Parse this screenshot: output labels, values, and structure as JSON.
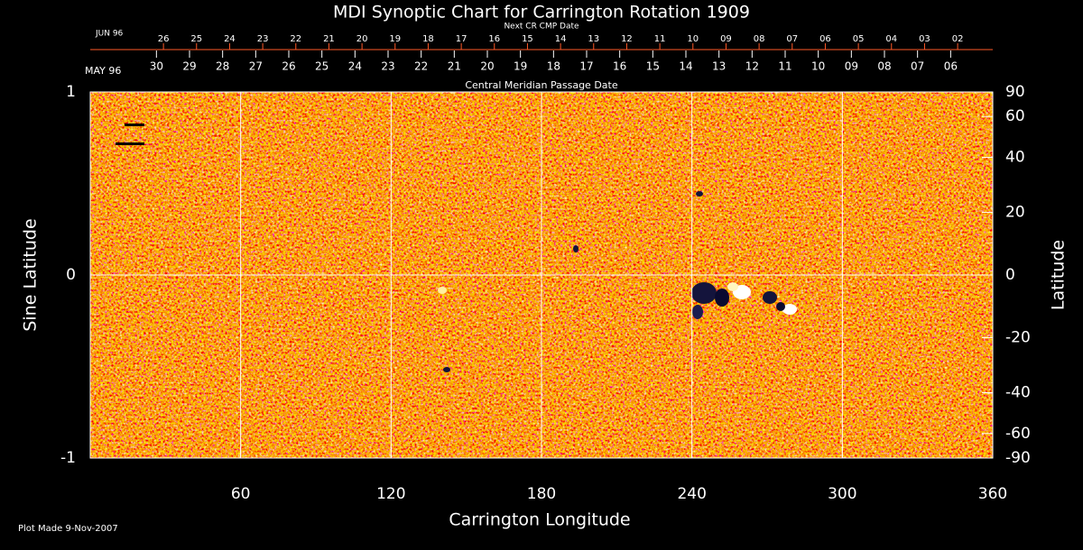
{
  "chart_data": {
    "type": "image",
    "title": "MDI Synoptic Chart for Carrington Rotation 1909",
    "xlabel": "Carrington Longitude",
    "ylabel": "Sine Latitude",
    "y2label": "Latitude",
    "xlim": [
      0,
      360
    ],
    "xticks": [
      60,
      120,
      180,
      240,
      300,
      360
    ],
    "ylim": [
      -1,
      1
    ],
    "yticks": [
      -1,
      0,
      1
    ],
    "y2lim": [
      -90,
      90
    ],
    "y2ticks": [
      90,
      60,
      40,
      20,
      0,
      -20,
      -40,
      -60,
      -90
    ],
    "y2scale": "sine",
    "top_axis": {
      "label": "Central Meridian Passage Date",
      "month": "MAY 96",
      "color": "#ffffff",
      "dates": [
        "30",
        "29",
        "28",
        "27",
        "26",
        "25",
        "24",
        "23",
        "22",
        "21",
        "20",
        "19",
        "18",
        "17",
        "16",
        "15",
        "14",
        "13",
        "12",
        "11",
        "10",
        "09",
        "08",
        "07",
        "06"
      ],
      "positions": [
        26.4,
        39.6,
        52.8,
        66.0,
        79.2,
        92.4,
        105.6,
        118.8,
        132.0,
        145.2,
        158.4,
        171.6,
        184.8,
        198.0,
        211.2,
        224.4,
        237.6,
        250.8,
        264.0,
        277.2,
        290.4,
        303.6,
        316.8,
        330.0,
        343.2
      ]
    },
    "next_axis": {
      "label": "Next CR CMP Date",
      "month": "JUN 96",
      "color": "#ff5a28",
      "dates": [
        "26",
        "25",
        "24",
        "23",
        "22",
        "21",
        "20",
        "19",
        "18",
        "17",
        "16",
        "15",
        "14",
        "13",
        "12",
        "11",
        "10",
        "09",
        "08",
        "07",
        "06",
        "05",
        "04",
        "03",
        "02"
      ],
      "positions": [
        29.2,
        42.4,
        55.6,
        68.8,
        82.0,
        95.2,
        108.4,
        121.6,
        134.8,
        148.0,
        161.2,
        174.4,
        187.6,
        200.8,
        214.0,
        227.2,
        240.4,
        253.6,
        266.8,
        280.0,
        293.2,
        306.4,
        319.6,
        332.8,
        346.0
      ]
    }
  },
  "footer": "Plot Made  9-Nov-2007"
}
